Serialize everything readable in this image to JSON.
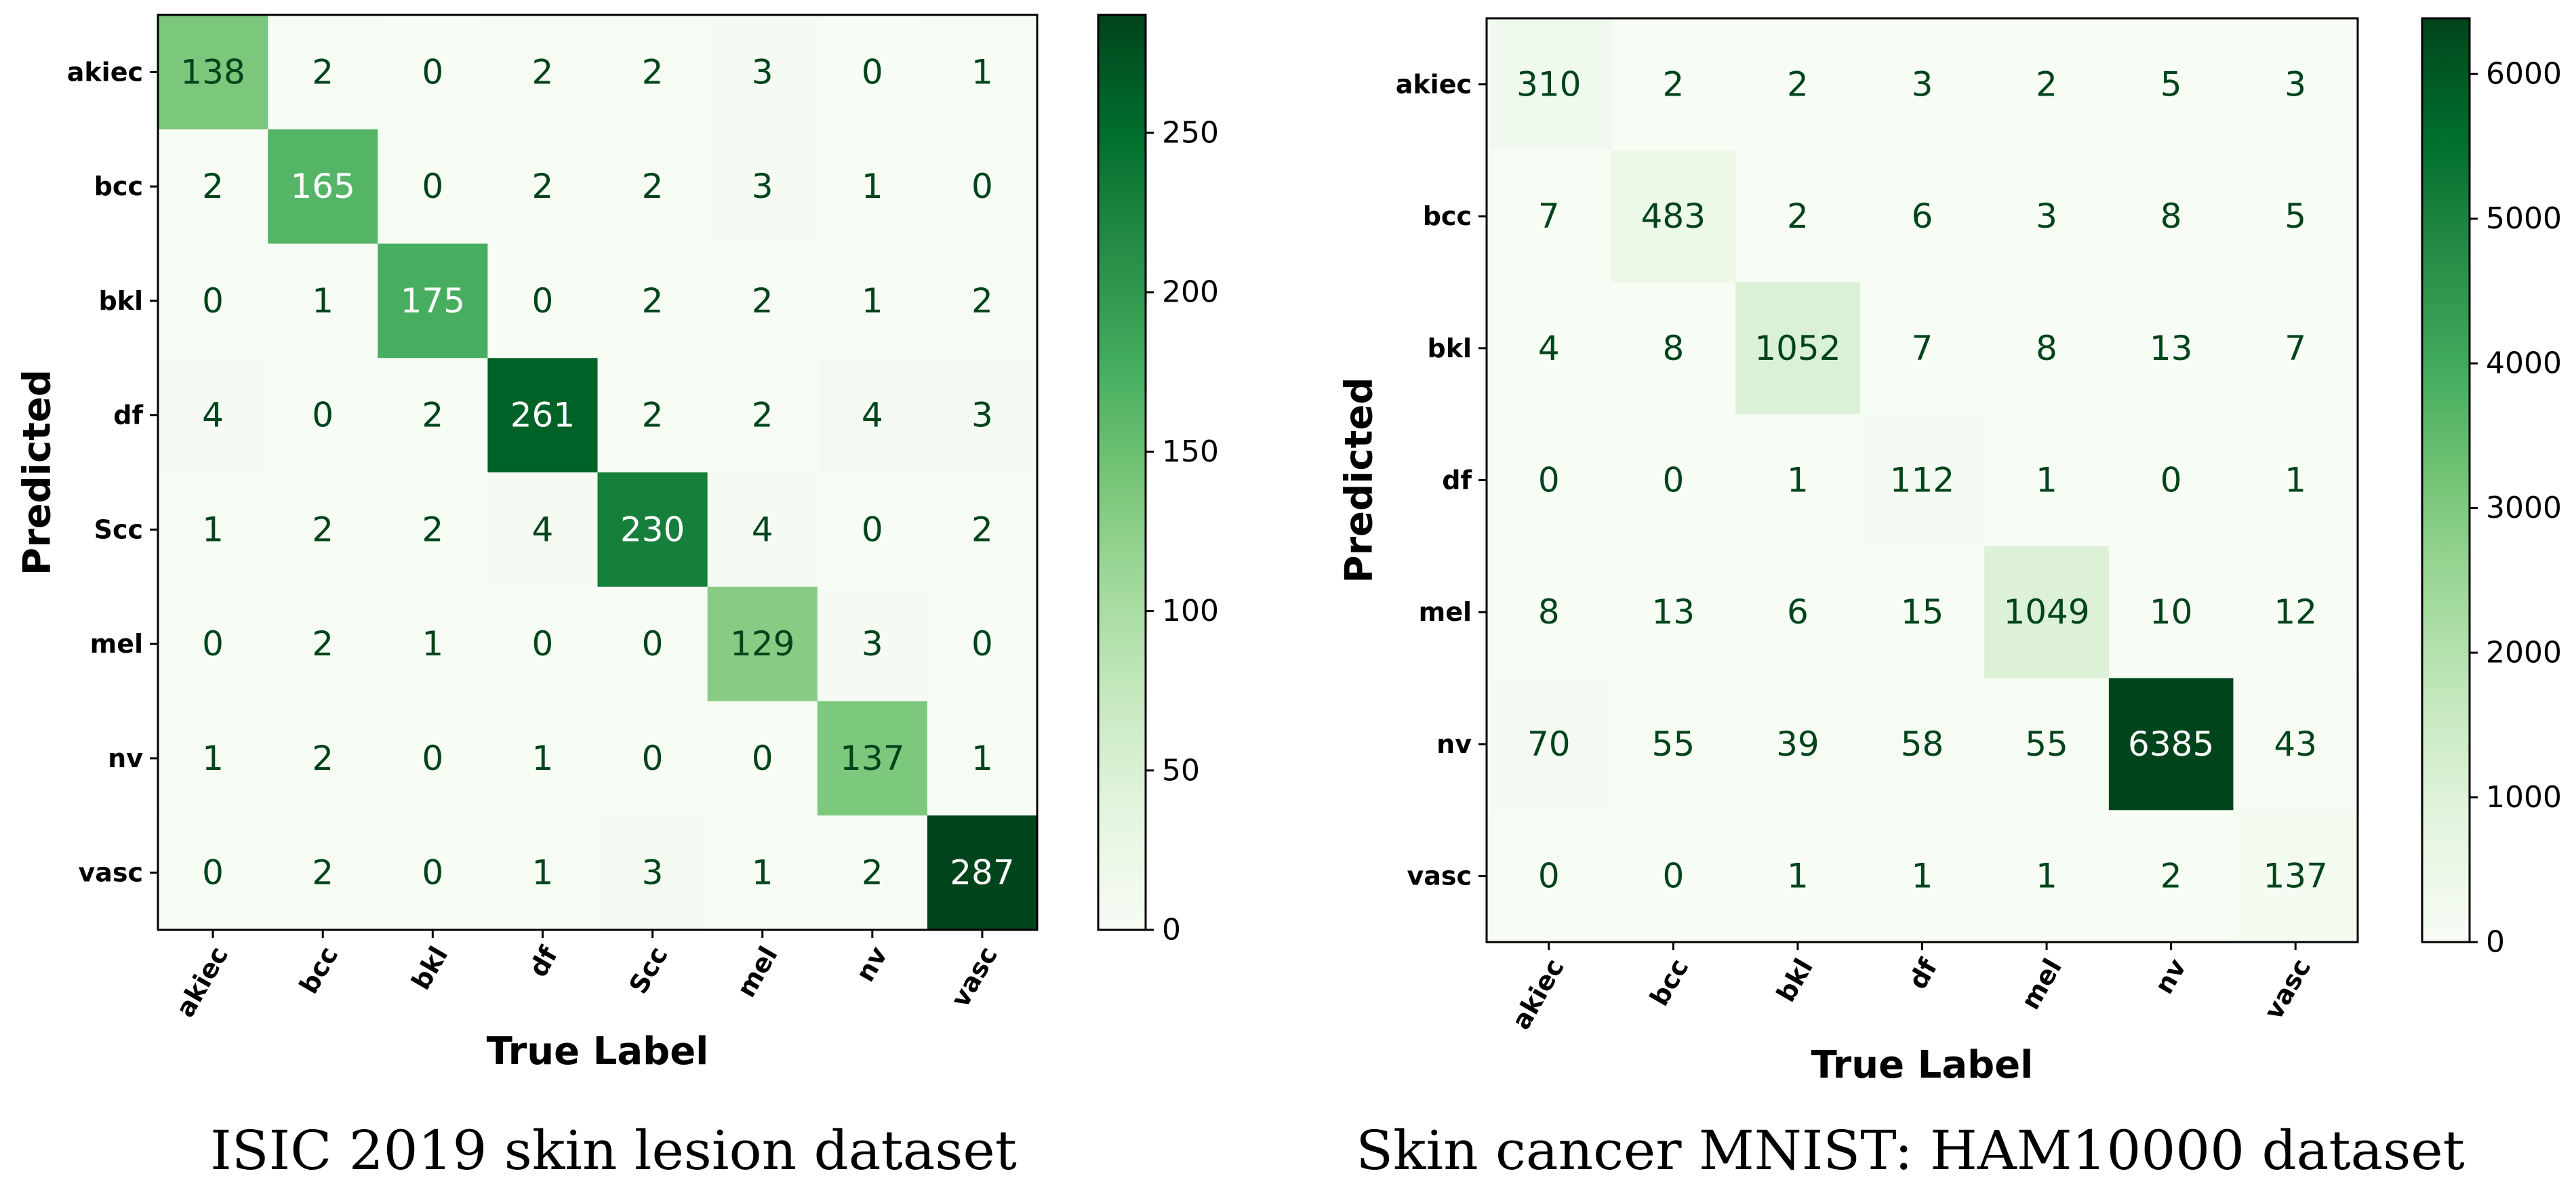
{
  "chart_data": [
    {
      "type": "heatmap",
      "title": "",
      "caption": "ISIC 2019 skin lesion dataset",
      "xlabel": "True Label",
      "ylabel": "Predicted",
      "x_categories": [
        "akiec",
        "bcc",
        "bkl",
        "df",
        "Scc",
        "mel",
        "nv",
        "vasc"
      ],
      "y_categories": [
        "akiec",
        "bcc",
        "bkl",
        "df",
        "Scc",
        "mel",
        "nv",
        "vasc"
      ],
      "values": [
        [
          138,
          2,
          0,
          2,
          2,
          3,
          0,
          1
        ],
        [
          2,
          165,
          0,
          2,
          2,
          3,
          1,
          0
        ],
        [
          0,
          1,
          175,
          0,
          2,
          2,
          1,
          2
        ],
        [
          4,
          0,
          2,
          261,
          2,
          2,
          4,
          3
        ],
        [
          1,
          2,
          2,
          4,
          230,
          4,
          0,
          2
        ],
        [
          0,
          2,
          1,
          0,
          0,
          129,
          3,
          0
        ],
        [
          1,
          2,
          0,
          1,
          0,
          0,
          137,
          1
        ],
        [
          0,
          2,
          0,
          1,
          3,
          1,
          2,
          287
        ]
      ],
      "colormap": "Greens",
      "vmin": 0,
      "vmax": 287,
      "colorbar_ticks": [
        0,
        50,
        100,
        150,
        200,
        250
      ]
    },
    {
      "type": "heatmap",
      "title": "",
      "caption": "Skin cancer MNIST: HAM10000 dataset",
      "xlabel": "True Label",
      "ylabel": "Predicted",
      "x_categories": [
        "akiec",
        "bcc",
        "bkl",
        "df",
        "mel",
        "nv",
        "vasc"
      ],
      "y_categories": [
        "akiec",
        "bcc",
        "bkl",
        "df",
        "mel",
        "nv",
        "vasc"
      ],
      "values": [
        [
          310,
          2,
          2,
          3,
          2,
          5,
          3
        ],
        [
          7,
          483,
          2,
          6,
          3,
          8,
          5
        ],
        [
          4,
          8,
          1052,
          7,
          8,
          13,
          7
        ],
        [
          0,
          0,
          1,
          112,
          1,
          0,
          1
        ],
        [
          8,
          13,
          6,
          15,
          1049,
          10,
          12
        ],
        [
          70,
          55,
          39,
          58,
          55,
          6385,
          43
        ],
        [
          0,
          0,
          1,
          1,
          1,
          2,
          137
        ]
      ],
      "colormap": "Greens",
      "vmin": 0,
      "vmax": 6385,
      "colorbar_ticks": [
        0,
        1000,
        2000,
        3000,
        4000,
        5000,
        6000
      ]
    }
  ]
}
